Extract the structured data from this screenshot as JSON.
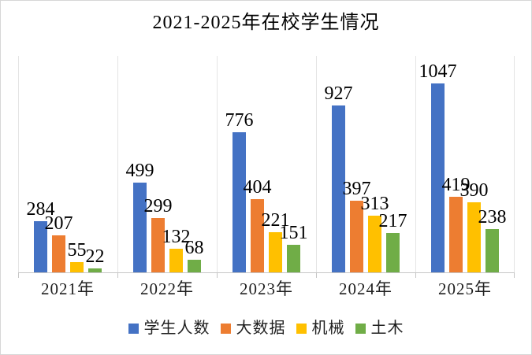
{
  "chart_data": {
    "type": "bar",
    "title": "2021-2025年在校学生情况",
    "categories": [
      "2021年",
      "2022年",
      "2023年",
      "2024年",
      "2025年"
    ],
    "series": [
      {
        "name": "学生人数",
        "color": "#4472C4",
        "values": [
          284,
          499,
          776,
          927,
          1047
        ]
      },
      {
        "name": "大数据",
        "color": "#ED7D31",
        "values": [
          207,
          299,
          404,
          397,
          419
        ]
      },
      {
        "name": "机械",
        "color": "#FFC000",
        "values": [
          55,
          132,
          221,
          313,
          390
        ]
      },
      {
        "name": "土木",
        "color": "#70AD47",
        "values": [
          22,
          68,
          151,
          217,
          238
        ]
      }
    ],
    "ylim": [
      0,
      1200
    ],
    "xlabel": "",
    "ylabel": "",
    "data_labels": true,
    "grid": "vertical-category-separators",
    "legend_position": "bottom",
    "axis_color": "#c6c6c6",
    "gridline_color": "#e4e4e4",
    "border_color": "#d6d6d6"
  }
}
